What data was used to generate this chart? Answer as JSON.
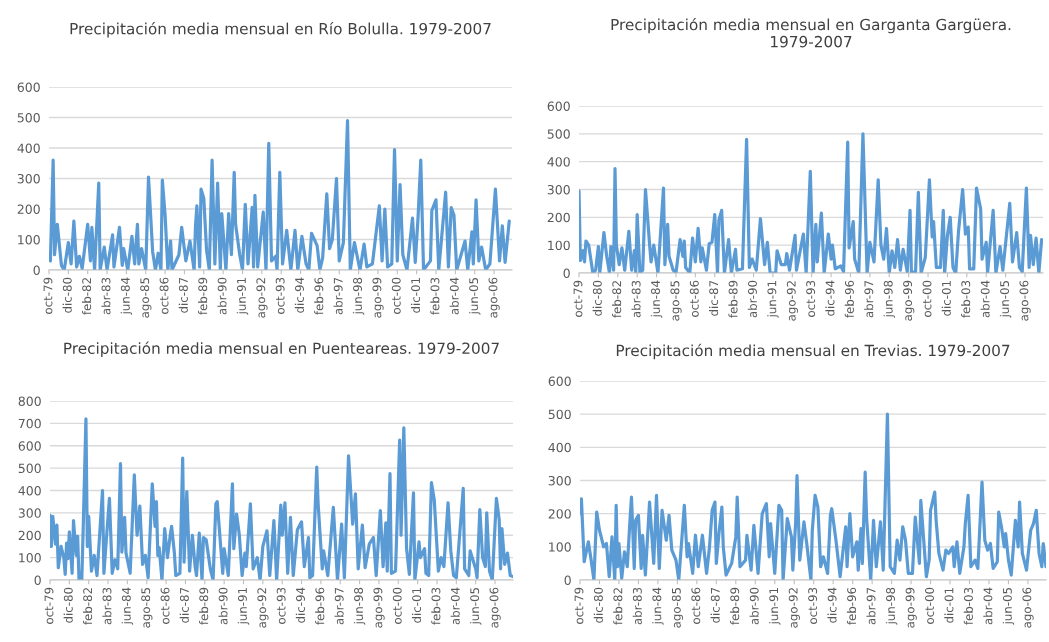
{
  "chart_data": [
    {
      "type": "line",
      "title": "Precipitación media mensual en Río Bolulla. 1979-2007",
      "grid": "y",
      "xlim": [
        "1979-10",
        "2007-09"
      ],
      "ylim": [
        0,
        600
      ],
      "yticks": [
        0,
        100,
        200,
        300,
        400,
        500,
        600
      ],
      "xticks": [
        {
          "value": "1979-10",
          "label": "oct-79"
        },
        {
          "value": "1980-12",
          "label": "dic-80"
        },
        {
          "value": "1982-02",
          "label": "feb-82"
        },
        {
          "value": "1983-04",
          "label": "abr-83"
        },
        {
          "value": "1984-06",
          "label": "jun-84"
        },
        {
          "value": "1985-08",
          "label": "ago-85"
        },
        {
          "value": "1986-10",
          "label": "oct-86"
        },
        {
          "value": "1987-12",
          "label": "dic-87"
        },
        {
          "value": "1989-02",
          "label": "feb-89"
        },
        {
          "value": "1990-04",
          "label": "abr-90"
        },
        {
          "value": "1991-06",
          "label": "jun-91"
        },
        {
          "value": "1992-08",
          "label": "ago-92"
        },
        {
          "value": "1993-10",
          "label": "oct-93"
        },
        {
          "value": "1994-12",
          "label": "dic-94"
        },
        {
          "value": "1996-02",
          "label": "feb-96"
        },
        {
          "value": "1997-04",
          "label": "abr-97"
        },
        {
          "value": "1998-06",
          "label": "jun-98"
        },
        {
          "value": "1999-08",
          "label": "ago-99"
        },
        {
          "value": "2000-10",
          "label": "oct-00"
        },
        {
          "value": "2001-12",
          "label": "dic-01"
        },
        {
          "value": "2003-02",
          "label": "feb-03"
        },
        {
          "value": "2004-04",
          "label": "abr-04"
        },
        {
          "value": "2005-06",
          "label": "jun-05"
        },
        {
          "value": "2006-08",
          "label": "ago-06"
        }
      ],
      "series": [
        {
          "color": "#5b9bd5",
          "x": [
            "1979-10",
            "1979-11",
            "1980-01",
            "1980-02",
            "1980-04",
            "1980-07",
            "1980-09",
            "1980-12",
            "1981-02",
            "1981-04",
            "1981-06",
            "1981-08",
            "1981-10",
            "1982-02",
            "1982-04",
            "1982-05",
            "1982-07",
            "1982-10",
            "1982-11",
            "1983-02",
            "1983-04",
            "1983-08",
            "1983-09",
            "1984-01",
            "1984-03",
            "1984-04",
            "1984-07",
            "1984-10",
            "1984-12",
            "1985-02",
            "1985-03",
            "1985-05",
            "1985-08",
            "1985-10",
            "1986-01",
            "1986-03",
            "1986-05",
            "1986-07",
            "1986-08",
            "1986-10",
            "1986-12",
            "1987-02",
            "1987-03",
            "1987-08",
            "1987-10",
            "1988-01",
            "1988-04",
            "1988-07",
            "1988-08",
            "1988-09",
            "1988-11",
            "1988-12",
            "1989-02",
            "1989-04",
            "1989-06",
            "1989-08",
            "1989-10",
            "1989-12",
            "1990-02",
            "1990-03",
            "1990-06",
            "1990-08",
            "1990-10",
            "1990-12",
            "1991-01",
            "1991-04",
            "1991-06",
            "1991-08",
            "1991-10",
            "1992-01",
            "1992-02",
            "1992-03",
            "1992-05",
            "1992-09",
            "1992-11",
            "1993-01",
            "1993-03",
            "1993-06",
            "1993-07",
            "1993-09",
            "1993-11",
            "1994-02",
            "1994-05",
            "1994-08",
            "1994-10",
            "1995-01",
            "1995-04",
            "1995-06",
            "1995-08",
            "1995-12",
            "1996-02",
            "1996-04",
            "1996-07",
            "1996-09",
            "1996-11",
            "1997-02",
            "1997-04",
            "1997-07",
            "1997-10",
            "1997-12",
            "1998-03",
            "1998-07",
            "1998-10",
            "1998-12",
            "1999-04",
            "1999-09",
            "1999-11",
            "2000-01",
            "2000-03",
            "2000-06",
            "2000-08",
            "2000-10",
            "2000-12",
            "2001-02",
            "2001-05",
            "2001-09",
            "2001-11",
            "2002-01",
            "2002-03",
            "2002-05",
            "2002-10",
            "2002-11",
            "2003-02",
            "2003-04",
            "2003-09",
            "2003-11",
            "2004-01",
            "2004-03",
            "2004-05",
            "2004-11",
            "2005-01",
            "2005-04",
            "2005-05",
            "2005-07",
            "2005-09",
            "2005-11",
            "2006-02",
            "2006-05",
            "2006-09",
            "2006-12",
            "2007-02",
            "2007-04",
            "2007-07"
          ],
          "values": [
            45,
            30,
            360,
            50,
            150,
            15,
            0,
            90,
            20,
            160,
            10,
            45,
            5,
            150,
            30,
            140,
            0,
            285,
            0,
            75,
            0,
            115,
            10,
            140,
            15,
            70,
            0,
            110,
            20,
            150,
            20,
            70,
            0,
            305,
            60,
            0,
            55,
            0,
            295,
            180,
            0,
            95,
            0,
            50,
            140,
            30,
            95,
            0,
            145,
            210,
            10,
            265,
            235,
            65,
            0,
            360,
            20,
            285,
            0,
            185,
            0,
            185,
            50,
            320,
            150,
            50,
            0,
            215,
            20,
            205,
            10,
            245,
            10,
            190,
            0,
            415,
            30,
            45,
            0,
            320,
            20,
            130,
            0,
            130,
            0,
            110,
            20,
            0,
            120,
            80,
            0,
            40,
            250,
            70,
            100,
            300,
            30,
            90,
            490,
            0,
            90,
            0,
            85,
            10,
            20,
            210,
            30,
            200,
            10,
            20,
            395,
            30,
            280,
            50,
            0,
            170,
            25,
            170,
            360,
            0,
            30,
            195,
            230,
            0,
            255,
            10,
            205,
            180,
            0,
            95,
            0,
            125,
            20,
            230,
            30,
            75,
            0,
            20,
            265,
            30,
            145,
            25,
            160
          ]
        }
      ]
    },
    {
      "type": "line",
      "title": "Precipitación media mensual en Garganta Gargüera. 1979-2007",
      "grid": "y",
      "xlim": [
        "1979-10",
        "2007-09"
      ],
      "ylim": [
        0,
        600
      ],
      "yticks": [
        0,
        100,
        200,
        300,
        400,
        500,
        600
      ],
      "xticks": [
        {
          "value": "1979-10",
          "label": "oct-79"
        },
        {
          "value": "1980-12",
          "label": "dic-80"
        },
        {
          "value": "1982-02",
          "label": "feb-82"
        },
        {
          "value": "1983-04",
          "label": "abr-83"
        },
        {
          "value": "1984-06",
          "label": "jun-84"
        },
        {
          "value": "1985-08",
          "label": "ago-85"
        },
        {
          "value": "1986-10",
          "label": "oct-86"
        },
        {
          "value": "1987-12",
          "label": "dic-87"
        },
        {
          "value": "1989-02",
          "label": "feb-89"
        },
        {
          "value": "1990-04",
          "label": "abr-90"
        },
        {
          "value": "1991-06",
          "label": "jun-91"
        },
        {
          "value": "1992-08",
          "label": "ago-92"
        },
        {
          "value": "1993-10",
          "label": "oct-93"
        },
        {
          "value": "1994-12",
          "label": "dic-94"
        },
        {
          "value": "1996-02",
          "label": "feb-96"
        },
        {
          "value": "1997-04",
          "label": "abr-97"
        },
        {
          "value": "1998-06",
          "label": "jun-98"
        },
        {
          "value": "1999-08",
          "label": "ago-99"
        },
        {
          "value": "2000-10",
          "label": "oct-00"
        },
        {
          "value": "2001-12",
          "label": "dic-01"
        },
        {
          "value": "2003-02",
          "label": "feb-03"
        },
        {
          "value": "2004-04",
          "label": "abr-04"
        },
        {
          "value": "2005-06",
          "label": "jun-05"
        },
        {
          "value": "2006-08",
          "label": "ago-06"
        }
      ],
      "series": [
        {
          "color": "#5b9bd5",
          "x": [
            "1979-10",
            "1979-11",
            "1980-01",
            "1980-02",
            "1980-03",
            "1980-05",
            "1980-08",
            "1980-10",
            "1980-12",
            "1981-01",
            "1981-04",
            "1981-06",
            "1981-08",
            "1981-09",
            "1981-11",
            "1981-12",
            "1982-01",
            "1982-03",
            "1982-05",
            "1982-07",
            "1982-10",
            "1982-12",
            "1983-02",
            "1983-03",
            "1983-04",
            "1983-06",
            "1983-08",
            "1983-10",
            "1984-01",
            "1984-02",
            "1984-04",
            "1984-07",
            "1984-11",
            "1984-12",
            "1985-02",
            "1985-03",
            "1985-06",
            "1985-08",
            "1985-11",
            "1986-01",
            "1986-02",
            "1986-03",
            "1986-06",
            "1986-08",
            "1986-10",
            "1986-12",
            "1987-02",
            "1987-03",
            "1987-06",
            "1987-08",
            "1987-10",
            "1987-12",
            "1988-02",
            "1988-03",
            "1988-05",
            "1988-07",
            "1988-10",
            "1988-12",
            "1989-03",
            "1989-04",
            "1989-08",
            "1989-11",
            "1990-01",
            "1990-03",
            "1990-06",
            "1990-09",
            "1990-12",
            "1991-02",
            "1991-04",
            "1991-08",
            "1991-09",
            "1991-12",
            "1992-03",
            "1992-04",
            "1992-06",
            "1992-10",
            "1992-11",
            "1993-04",
            "1993-06",
            "1993-09",
            "1993-11",
            "1994-01",
            "1994-02",
            "1994-05",
            "1994-07",
            "1994-10",
            "1994-12",
            "1995-01",
            "1995-03",
            "1995-07",
            "1995-09",
            "1995-12",
            "1996-01",
            "1996-04",
            "1996-05",
            "1996-08",
            "1996-11",
            "1997-02",
            "1997-04",
            "1997-07",
            "1997-10",
            "1997-12",
            "1998-02",
            "1998-04",
            "1998-06",
            "1998-08",
            "1998-10",
            "1998-12",
            "1999-02",
            "1999-04",
            "1999-07",
            "1999-09",
            "1999-10",
            "2000-01",
            "2000-03",
            "2000-05",
            "2000-08",
            "2000-11",
            "2001-01",
            "2001-02",
            "2001-04",
            "2001-07",
            "2001-09",
            "2001-10",
            "2001-12",
            "2002-02",
            "2002-04",
            "2002-06",
            "2002-08",
            "2002-11",
            "2003-01",
            "2003-03",
            "2003-04",
            "2003-07",
            "2003-09",
            "2003-12",
            "2004-01",
            "2004-04",
            "2004-05",
            "2004-09",
            "2004-11",
            "2005-02",
            "2005-04",
            "2005-09",
            "2005-11",
            "2006-02",
            "2006-04",
            "2006-06",
            "2006-09",
            "2006-11",
            "2006-12",
            "2007-02",
            "2007-04",
            "2007-06",
            "2007-08"
          ],
          "values": [
            295,
            45,
            80,
            40,
            115,
            100,
            0,
            10,
            95,
            0,
            145,
            60,
            0,
            95,
            10,
            375,
            100,
            30,
            90,
            10,
            150,
            10,
            80,
            0,
            210,
            0,
            10,
            300,
            100,
            40,
            100,
            0,
            305,
            30,
            175,
            60,
            10,
            0,
            120,
            60,
            115,
            20,
            0,
            125,
            40,
            160,
            40,
            90,
            10,
            105,
            110,
            210,
            0,
            190,
            225,
            0,
            120,
            0,
            85,
            10,
            15,
            480,
            20,
            50,
            10,
            195,
            30,
            110,
            0,
            0,
            80,
            30,
            30,
            70,
            10,
            135,
            10,
            140,
            0,
            365,
            0,
            175,
            40,
            215,
            0,
            140,
            50,
            100,
            15,
            25,
            5,
            470,
            90,
            185,
            50,
            0,
            500,
            0,
            110,
            40,
            335,
            100,
            50,
            160,
            0,
            80,
            20,
            120,
            10,
            85,
            5,
            225,
            0,
            5,
            290,
            0,
            55,
            335,
            130,
            185,
            20,
            20,
            225,
            0,
            135,
            200,
            20,
            0,
            150,
            300,
            140,
            165,
            15,
            15,
            305,
            230,
            50,
            110,
            0,
            225,
            0,
            95,
            10,
            250,
            40,
            145,
            20,
            5,
            305,
            20,
            135,
            30,
            125,
            0,
            120
          ]
        }
      ]
    },
    {
      "type": "line",
      "title": "Precipitación media mensual en Puenteareas. 1979-2007",
      "grid": "y",
      "xlim": [
        "1979-10",
        "2007-09"
      ],
      "ylim": [
        0,
        800
      ],
      "yticks": [
        0,
        100,
        200,
        300,
        400,
        500,
        600,
        700,
        800
      ],
      "xticks": [
        {
          "value": "1979-10",
          "label": "oct-79"
        },
        {
          "value": "1980-12",
          "label": "dic-80"
        },
        {
          "value": "1982-02",
          "label": "feb-82"
        },
        {
          "value": "1983-04",
          "label": "abr-83"
        },
        {
          "value": "1984-06",
          "label": "jun-84"
        },
        {
          "value": "1985-08",
          "label": "ago-85"
        },
        {
          "value": "1986-10",
          "label": "oct-86"
        },
        {
          "value": "1987-12",
          "label": "dic-87"
        },
        {
          "value": "1989-02",
          "label": "feb-89"
        },
        {
          "value": "1990-04",
          "label": "abr-90"
        },
        {
          "value": "1991-06",
          "label": "jun-91"
        },
        {
          "value": "1992-08",
          "label": "ago-92"
        },
        {
          "value": "1993-10",
          "label": "oct-93"
        },
        {
          "value": "1994-12",
          "label": "dic-94"
        },
        {
          "value": "1996-02",
          "label": "feb-96"
        },
        {
          "value": "1997-04",
          "label": "abr-97"
        },
        {
          "value": "1998-06",
          "label": "jun-98"
        },
        {
          "value": "1999-08",
          "label": "ago-99"
        },
        {
          "value": "2000-10",
          "label": "oct-00"
        },
        {
          "value": "2001-12",
          "label": "dic-01"
        },
        {
          "value": "2003-02",
          "label": "feb-03"
        },
        {
          "value": "2004-04",
          "label": "abr-04"
        },
        {
          "value": "2005-06",
          "label": "jun-05"
        },
        {
          "value": "2006-08",
          "label": "ago-06"
        }
      ],
      "series": [
        {
          "color": "#5b9bd5",
          "x": [
            "1979-10",
            "1979-11",
            "1979-12",
            "1980-02",
            "1980-03",
            "1980-04",
            "1980-06",
            "1980-08",
            "1980-09",
            "1980-10",
            "1980-11",
            "1980-12",
            "1981-02",
            "1981-03",
            "1981-05",
            "1981-06",
            "1981-07",
            "1981-09",
            "1981-10",
            "1981-12",
            "1982-01",
            "1982-02",
            "1982-04",
            "1982-06",
            "1982-08",
            "1982-12",
            "1983-01",
            "1983-03",
            "1983-05",
            "1983-07",
            "1983-09",
            "1983-11",
            "1984-01",
            "1984-02",
            "1984-04",
            "1984-05",
            "1984-08",
            "1984-11",
            "1985-01",
            "1985-03",
            "1985-05",
            "1985-07",
            "1985-09",
            "1985-12",
            "1986-02",
            "1986-03",
            "1986-04",
            "1986-05",
            "1986-07",
            "1986-09",
            "1986-11",
            "1987-01",
            "1987-02",
            "1987-04",
            "1987-05",
            "1987-08",
            "1987-10",
            "1987-11",
            "1988-01",
            "1988-03",
            "1988-05",
            "1988-07",
            "1988-08",
            "1988-10",
            "1988-12",
            "1989-01",
            "1989-03",
            "1989-06",
            "1989-08",
            "1989-10",
            "1989-11",
            "1990-03",
            "1990-04",
            "1990-07",
            "1990-10",
            "1990-11",
            "1991-01",
            "1991-03",
            "1991-05",
            "1991-07",
            "1991-08",
            "1991-11",
            "1992-01",
            "1992-04",
            "1992-06",
            "1992-08",
            "1992-11",
            "1993-01",
            "1993-04",
            "1993-06",
            "1993-09",
            "1993-10",
            "1993-12",
            "1994-02",
            "1994-04",
            "1994-06",
            "1994-09",
            "1994-12",
            "1995-02",
            "1995-05",
            "1995-06",
            "1995-08",
            "1995-11",
            "1995-12",
            "1996-03",
            "1996-04",
            "1996-07",
            "1996-11",
            "1997-02",
            "1997-05",
            "1997-07",
            "1997-10",
            "1998-01",
            "1998-03",
            "1998-05",
            "1998-08",
            "1998-10",
            "1999-01",
            "1999-04",
            "1999-06",
            "1999-09",
            "1999-11",
            "2000-01",
            "2000-02",
            "2000-04",
            "2000-05",
            "2000-08",
            "2000-11",
            "2000-12",
            "2001-02",
            "2001-04",
            "2001-06",
            "2001-09",
            "2001-10",
            "2002-01",
            "2002-02",
            "2002-05",
            "2002-06",
            "2002-08",
            "2002-10",
            "2002-12",
            "2003-03",
            "2003-05",
            "2003-07",
            "2003-10",
            "2003-12",
            "2004-02",
            "2004-04",
            "2004-09",
            "2004-10",
            "2005-01",
            "2005-02",
            "2005-06",
            "2005-07",
            "2005-09",
            "2005-11",
            "2006-01",
            "2006-02",
            "2006-04",
            "2006-06",
            "2006-09",
            "2006-11",
            "2006-12",
            "2007-01",
            "2007-03",
            "2007-05",
            "2007-07",
            "2007-09"
          ],
          "values": [
            290,
            150,
            285,
            160,
            245,
            55,
            150,
            100,
            25,
            165,
            95,
            215,
            30,
            265,
            110,
            195,
            0,
            0,
            225,
            720,
            150,
            285,
            40,
            110,
            20,
            400,
            30,
            200,
            365,
            30,
            90,
            50,
            520,
            125,
            280,
            120,
            30,
            470,
            200,
            330,
            70,
            110,
            10,
            430,
            240,
            350,
            110,
            145,
            0,
            230,
            100,
            200,
            240,
            120,
            20,
            30,
            545,
            80,
            395,
            40,
            200,
            60,
            20,
            210,
            0,
            190,
            180,
            50,
            0,
            340,
            350,
            30,
            140,
            20,
            430,
            140,
            295,
            200,
            20,
            120,
            60,
            340,
            50,
            100,
            0,
            150,
            220,
            20,
            265,
            0,
            335,
            200,
            345,
            30,
            280,
            20,
            225,
            260,
            60,
            190,
            10,
            20,
            505,
            340,
            50,
            130,
            20,
            325,
            0,
            250,
            10,
            555,
            250,
            385,
            50,
            245,
            55,
            160,
            190,
            20,
            310,
            60,
            255,
            40,
            475,
            30,
            40,
            625,
            200,
            680,
            140,
            25,
            390,
            0,
            170,
            100,
            140,
            30,
            20,
            435,
            360,
            40,
            100,
            60,
            345,
            130,
            20,
            10,
            410,
            50,
            20,
            130,
            50,
            10,
            315,
            100,
            60,
            300,
            40,
            0,
            365,
            270,
            50,
            230,
            70,
            120,
            20,
            15
          ]
        }
      ]
    },
    {
      "type": "line",
      "title": "Precipitación media mensual en Trevias. 1979-2007",
      "grid": "y",
      "xlim": [
        "1979-10",
        "2007-09"
      ],
      "ylim": [
        0,
        600
      ],
      "yticks": [
        0,
        100,
        200,
        300,
        400,
        500,
        600
      ],
      "xticks": [
        {
          "value": "1979-10",
          "label": "oct-79"
        },
        {
          "value": "1980-12",
          "label": "dic-80"
        },
        {
          "value": "1982-02",
          "label": "feb-82"
        },
        {
          "value": "1983-04",
          "label": "abr-83"
        },
        {
          "value": "1984-06",
          "label": "jun-84"
        },
        {
          "value": "1985-08",
          "label": "ago-85"
        },
        {
          "value": "1986-10",
          "label": "oct-86"
        },
        {
          "value": "1987-12",
          "label": "dic-87"
        },
        {
          "value": "1989-02",
          "label": "feb-89"
        },
        {
          "value": "1990-04",
          "label": "abr-90"
        },
        {
          "value": "1991-06",
          "label": "jun-91"
        },
        {
          "value": "1992-08",
          "label": "ago-92"
        },
        {
          "value": "1993-10",
          "label": "oct-93"
        },
        {
          "value": "1994-12",
          "label": "dic-94"
        },
        {
          "value": "1996-02",
          "label": "feb-96"
        },
        {
          "value": "1997-04",
          "label": "abr-97"
        },
        {
          "value": "1998-06",
          "label": "jun-98"
        },
        {
          "value": "1999-08",
          "label": "ago-99"
        },
        {
          "value": "2000-10",
          "label": "oct-00"
        },
        {
          "value": "2001-12",
          "label": "dic-01"
        },
        {
          "value": "2003-02",
          "label": "feb-03"
        },
        {
          "value": "2004-04",
          "label": "abr-04"
        },
        {
          "value": "2005-06",
          "label": "jun-05"
        },
        {
          "value": "2006-08",
          "label": "ago-06"
        }
      ],
      "series": [
        {
          "color": "#5b9bd5",
          "x": [
            "1979-10",
            "1979-11",
            "1980-01",
            "1980-04",
            "1980-06",
            "1980-08",
            "1980-10",
            "1980-12",
            "1981-03",
            "1981-05",
            "1981-07",
            "1981-09",
            "1981-11",
            "1981-12",
            "1982-01",
            "1982-02",
            "1982-04",
            "1982-06",
            "1982-08",
            "1982-10",
            "1982-11",
            "1983-01",
            "1983-02",
            "1983-04",
            "1983-06",
            "1983-07",
            "1983-09",
            "1983-12",
            "1984-03",
            "1984-05",
            "1984-07",
            "1984-09",
            "1984-12",
            "1985-02",
            "1985-04",
            "1985-07",
            "1985-09",
            "1986-01",
            "1986-03",
            "1986-04",
            "1986-07",
            "1986-09",
            "1986-11",
            "1987-02",
            "1987-05",
            "1987-07",
            "1987-09",
            "1987-11",
            "1987-12",
            "1988-02",
            "1988-04",
            "1988-05",
            "1988-07",
            "1988-11",
            "1989-02",
            "1989-03",
            "1989-05",
            "1989-09",
            "1989-10",
            "1990-01",
            "1990-03",
            "1990-06",
            "1990-09",
            "1990-12",
            "1991-02",
            "1991-03",
            "1991-06",
            "1991-09",
            "1991-11",
            "1991-12",
            "1992-03",
            "1992-06",
            "1992-07",
            "1992-09",
            "1992-10",
            "1992-12",
            "1993-03",
            "1993-05",
            "1993-08",
            "1993-09",
            "1993-11",
            "1994-01",
            "1994-03",
            "1994-05",
            "1994-08",
            "1994-10",
            "1994-11",
            "1995-02",
            "1995-05",
            "1995-09",
            "1995-10",
            "1995-12",
            "1996-02",
            "1996-05",
            "1996-06",
            "1996-08",
            "1996-09",
            "1996-11",
            "1996-12",
            "1997-03",
            "1997-05",
            "1997-07",
            "1997-10",
            "1997-12",
            "1998-03",
            "1998-05",
            "1998-08",
            "1998-10",
            "1998-12",
            "1999-02",
            "1999-04",
            "1999-06",
            "1999-09",
            "1999-11",
            "2000-02",
            "2000-03",
            "2000-07",
            "2000-09",
            "2000-10",
            "2001-01",
            "2001-02",
            "2001-04",
            "2001-07",
            "2001-09",
            "2001-11",
            "2002-02",
            "2002-03",
            "2002-05",
            "2002-07",
            "2002-10",
            "2002-11",
            "2003-01",
            "2003-03",
            "2003-06",
            "2003-08",
            "2003-11",
            "2004-01",
            "2004-03",
            "2004-05",
            "2004-07",
            "2004-10",
            "2004-11",
            "2005-01",
            "2005-03",
            "2005-04",
            "2005-06",
            "2005-08",
            "2005-11",
            "2006-01",
            "2006-02",
            "2006-04",
            "2006-07",
            "2006-10",
            "2006-12",
            "2007-02",
            "2007-04",
            "2007-06",
            "2007-07",
            "2007-09"
          ],
          "values": [
            200,
            245,
            55,
            115,
            60,
            0,
            205,
            150,
            100,
            110,
            10,
            130,
            0,
            225,
            40,
            110,
            5,
            85,
            40,
            185,
            250,
            35,
            180,
            195,
            35,
            135,
            15,
            235,
            50,
            255,
            35,
            210,
            120,
            195,
            90,
            60,
            0,
            225,
            70,
            110,
            20,
            135,
            40,
            135,
            20,
            95,
            210,
            235,
            50,
            145,
            220,
            100,
            15,
            50,
            130,
            250,
            40,
            60,
            135,
            30,
            165,
            20,
            200,
            230,
            70,
            170,
            20,
            225,
            210,
            0,
            185,
            130,
            30,
            170,
            315,
            60,
            175,
            110,
            0,
            150,
            255,
            220,
            40,
            70,
            20,
            195,
            215,
            120,
            10,
            160,
            40,
            200,
            70,
            115,
            30,
            155,
            50,
            325,
            190,
            0,
            180,
            40,
            175,
            30,
            500,
            40,
            20,
            120,
            60,
            160,
            120,
            20,
            20,
            190,
            50,
            240,
            10,
            60,
            210,
            265,
            180,
            80,
            30,
            90,
            80,
            100,
            40,
            115,
            20,
            100,
            170,
            255,
            40,
            60,
            35,
            295,
            120,
            90,
            110,
            35,
            55,
            205,
            160,
            100,
            140,
            60,
            15,
            180,
            100,
            235,
            80,
            30,
            150,
            170,
            210,
            80,
            40,
            110,
            40
          ]
        }
      ]
    }
  ]
}
